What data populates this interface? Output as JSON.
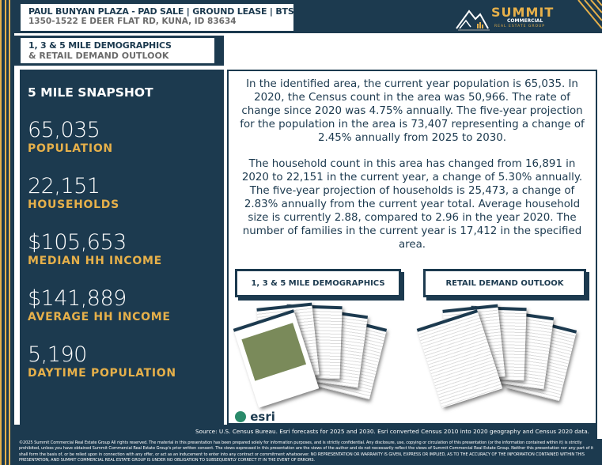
{
  "header": {
    "title": "PAUL BUNYAN PLAZA - PAD SALE | GROUND LEASE | BTS",
    "address": "1350-1522 E DEER FLAT RD, KUNA, ID 83634"
  },
  "logo": {
    "name": "SUMMIT",
    "line1": "COMMERCIAL",
    "line2": "REAL ESTATE GROUP"
  },
  "section": {
    "line1": "1, 3 & 5 MILE DEMOGRAPHICS",
    "line2": "& RETAIL DEMAND OUTLOOK"
  },
  "snapshot": {
    "title": "5 MILE SNAPSHOT",
    "stats": [
      {
        "value": "65,035",
        "label": "POPULATION"
      },
      {
        "value": "22,151",
        "label": "HOUSEHOLDS"
      },
      {
        "value": "$105,653",
        "label": "MEDIAN HH INCOME"
      },
      {
        "value": "$141,889",
        "label": "AVERAGE HH INCOME"
      },
      {
        "value": "5,190",
        "label": "DAYTIME POPULATION"
      }
    ]
  },
  "paragraphs": [
    "In the identified area, the current year population is 65,035. In 2020, the Census count in the area was 50,966. The rate of change since 2020 was 4.75% annually. The five-year projection for the population in the area is 73,407 representing a change of 2.45% annually from 2025 to 2030.",
    "The household count in this area has changed from 16,891 in 2020 to 22,151 in the current year, a change of 5.30% annually.  The five-year projection of households is 25,473, a change of 2.83% annually from the current year total.  Average household size is currently 2.88, compared to 2.96 in the year 2020. The number of families in the current year is 17,412 in the specified area."
  ],
  "buttons": {
    "demographics": "1, 3 & 5 MILE DEMOGRAPHICS",
    "retail": "RETAIL DEMAND OUTLOOK"
  },
  "esri": "esri",
  "source": "Source: U.S. Census Bureau. Esri forecasts for 2025 and 2030. Esri converted Census 2010 into 2020 geography and Census 2020 data.",
  "disclaimer": "©2025 Summit Commercial Real Estate Group All rights reserved.  The material in this presentation has been prepared solely for information purposes, and is strictly confidential. Any disclosure, use, copying or circulation of this presentation (or the information contained within it) is strictly prohibited, unless you have obtained Summit Commercial Real Estate Group's prior written consent. The views expressed in this presentation are the views of the author and do not necessarily reflect the views of Summit Commercial Real Estate Group. Neither this presentation nor any part of it shall form the basis of, or be relied upon in connection with any offer, or act as an inducement to enter into any contract or commitment whatsoever. NO REPRESENTATION OR WARRANTY IS GIVEN, EXPRESS OR IMPLIED, AS TO THE ACCURACY OF THE INFORMATION CONTAINED WITHIN THIS PRESENTATION, AND SUMMIT COMMERCIAL REAL ESTATE GROUP IS UNDER NO OBLIGATION TO SUBSEQUENTLY CORRECT IT IN THE EVENT OF ERRORS.",
  "colors": {
    "navy": "#1c3a4f",
    "gold": "#e6b04a"
  }
}
